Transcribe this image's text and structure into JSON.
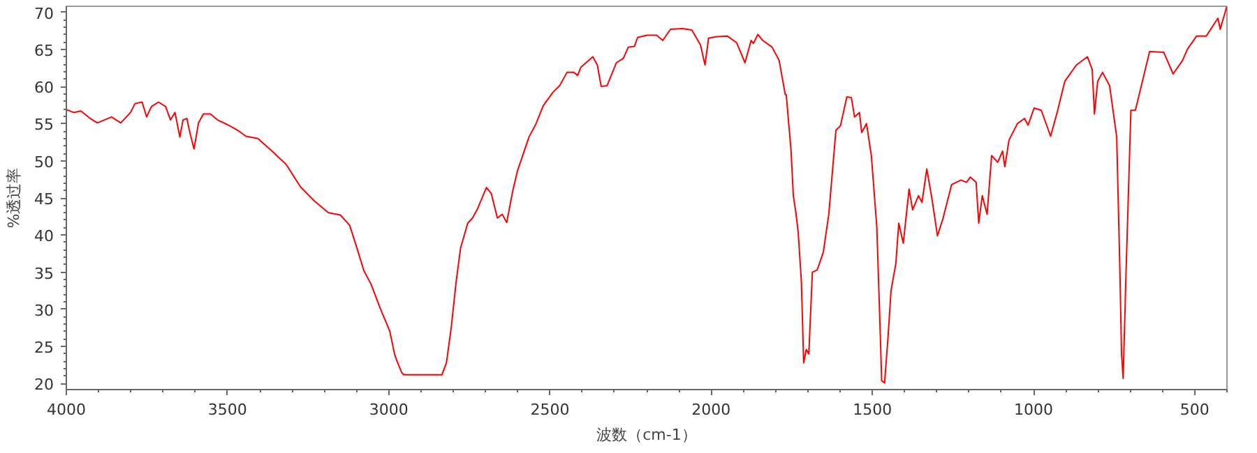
{
  "chart_data": {
    "type": "line",
    "xlabel": "波数（cm-1）",
    "ylabel": "%透过率",
    "xlim": [
      4000,
      400
    ],
    "ylim": [
      19.2,
      70.8
    ],
    "xticks": [
      4000,
      3500,
      3000,
      2500,
      2000,
      1500,
      1000,
      500
    ],
    "yticks": [
      20,
      25,
      30,
      35,
      40,
      45,
      50,
      55,
      60,
      65,
      70
    ],
    "grid": false,
    "marker": "none",
    "line_style": "solid",
    "series": [
      {
        "color": "#ff0000",
        "x": [
          4000,
          3977,
          3955,
          3926,
          3904,
          3860,
          3831,
          3801,
          3787,
          3765,
          3751,
          3736,
          3714,
          3692,
          3677,
          3663,
          3648,
          3638,
          3626,
          3619,
          3604,
          3590,
          3575,
          3553,
          3531,
          3502,
          3468,
          3443,
          3406,
          3362,
          3318,
          3274,
          3231,
          3187,
          3150,
          3121,
          3099,
          3077,
          3055,
          3026,
          2997,
          2982,
          2975,
          2960,
          2953,
          2835,
          2821,
          2806,
          2791,
          2777,
          2755,
          2740,
          2726,
          2697,
          2682,
          2663,
          2648,
          2634,
          2616,
          2601,
          2565,
          2543,
          2521,
          2491,
          2470,
          2447,
          2426,
          2414,
          2404,
          2367,
          2353,
          2341,
          2323,
          2294,
          2272,
          2257,
          2238,
          2228,
          2198,
          2169,
          2150,
          2126,
          2089,
          2060,
          2033,
          2019,
          2008,
          1986,
          1950,
          1921,
          1895,
          1876,
          1869,
          1855,
          1840,
          1811,
          1789,
          1770,
          1767,
          1752,
          1745,
          1737,
          1730,
          1720,
          1713,
          1705,
          1697,
          1686,
          1671,
          1652,
          1635,
          1613,
          1599,
          1579,
          1565,
          1555,
          1540,
          1533,
          1518,
          1503,
          1486,
          1477,
          1471,
          1462,
          1452,
          1442,
          1427,
          1418,
          1404,
          1386,
          1375,
          1357,
          1346,
          1331,
          1314,
          1298,
          1281,
          1254,
          1225,
          1208,
          1196,
          1178,
          1170,
          1159,
          1144,
          1130,
          1111,
          1096,
          1089,
          1076,
          1050,
          1028,
          1017,
          998,
          976,
          947,
          925,
          903,
          867,
          833,
          818,
          811,
          801,
          786,
          764,
          742,
          732,
          727,
          722,
          713,
          698,
          684,
          640,
          596,
          567,
          538,
          523,
          494,
          464,
          428,
          421,
          401
        ],
        "values": [
          56.9,
          56.5,
          56.7,
          55.7,
          55.1,
          55.9,
          55.1,
          56.5,
          57.7,
          57.9,
          55.9,
          57.3,
          57.9,
          57.3,
          55.5,
          56.5,
          53.2,
          55.5,
          55.7,
          54.2,
          51.6,
          55.1,
          56.3,
          56.3,
          55.5,
          54.9,
          54.1,
          53.3,
          53.0,
          51.3,
          49.5,
          46.5,
          44.6,
          43.0,
          42.7,
          41.3,
          38.3,
          35.2,
          33.4,
          30.1,
          27.1,
          24.0,
          23.1,
          21.5,
          21.2,
          21.2,
          22.8,
          27.6,
          33.7,
          38.3,
          41.6,
          42.3,
          43.4,
          46.4,
          45.6,
          42.3,
          42.8,
          41.7,
          45.8,
          48.6,
          53.2,
          55.0,
          57.4,
          59.2,
          60.1,
          61.9,
          61.9,
          61.5,
          62.6,
          64.0,
          62.9,
          60.0,
          60.1,
          63.2,
          63.8,
          65.3,
          65.4,
          66.6,
          66.9,
          66.9,
          66.2,
          67.7,
          67.8,
          67.6,
          65.6,
          62.9,
          66.5,
          66.7,
          66.8,
          65.9,
          63.2,
          66.2,
          65.8,
          67.0,
          66.2,
          65.3,
          63.5,
          58.9,
          58.9,
          51.3,
          45.3,
          43.0,
          40.4,
          33.7,
          22.8,
          24.6,
          24.0,
          35.0,
          35.3,
          37.7,
          42.8,
          54.1,
          54.7,
          58.6,
          58.5,
          55.9,
          56.5,
          53.8,
          55.0,
          50.7,
          41.0,
          28.9,
          20.4,
          20.1,
          25.8,
          32.5,
          36.2,
          41.6,
          38.9,
          46.2,
          43.4,
          45.3,
          44.4,
          48.9,
          44.6,
          39.9,
          42.2,
          46.8,
          47.4,
          47.1,
          47.8,
          47.1,
          41.6,
          45.3,
          42.8,
          50.7,
          49.8,
          51.3,
          49.2,
          52.8,
          55.0,
          55.7,
          54.8,
          57.1,
          56.8,
          53.3,
          56.8,
          60.7,
          62.9,
          64.0,
          62.3,
          56.3,
          60.7,
          61.9,
          60.1,
          53.2,
          35.0,
          24.0,
          20.7,
          35.0,
          56.8,
          56.8,
          64.7,
          64.6,
          61.7,
          63.5,
          65.0,
          66.8,
          66.8,
          69.2,
          67.7,
          70.7
        ]
      }
    ]
  }
}
